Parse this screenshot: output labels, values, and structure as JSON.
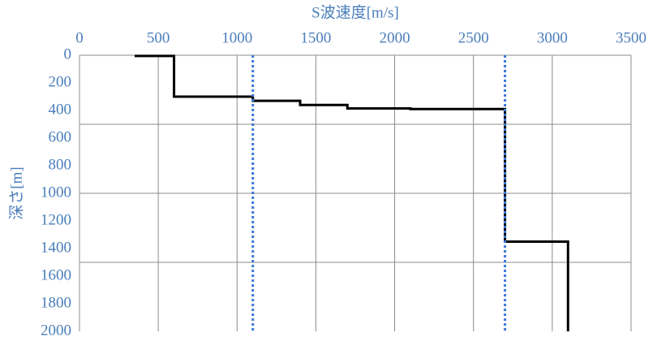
{
  "chart_data": {
    "type": "line",
    "x_label": "S波速度[m/s]",
    "y_label": "深さ[m]",
    "xlim": [
      0,
      3500
    ],
    "xticks": [
      0,
      500,
      1000,
      1500,
      2000,
      2500,
      3000,
      3500
    ],
    "ylim": [
      0,
      2000
    ],
    "yticks": [
      0,
      200,
      400,
      600,
      800,
      1000,
      1200,
      1400,
      1600,
      1800,
      2000
    ],
    "y_inverted": true,
    "x_axis_position": "top",
    "grid": true,
    "ygridlines": [
      500,
      1000,
      1500
    ],
    "series": [
      {
        "color": "#000000",
        "style": "solid",
        "x": [
          350,
          600,
          600,
          1100,
          1100,
          1400,
          1400,
          1700,
          1700,
          2100,
          2100,
          2700,
          2700,
          3100,
          3100
        ],
        "values": [
          5,
          5,
          300,
          300,
          330,
          330,
          360,
          360,
          385,
          385,
          390,
          390,
          1350,
          1350,
          2000
        ]
      },
      {
        "color": "#3a78d8",
        "style": "dotted",
        "x": [
          1100,
          1100
        ],
        "values": [
          0,
          2000
        ]
      },
      {
        "color": "#3a78d8",
        "style": "dotted",
        "x": [
          2700,
          2700
        ],
        "values": [
          0,
          2000
        ]
      }
    ]
  }
}
